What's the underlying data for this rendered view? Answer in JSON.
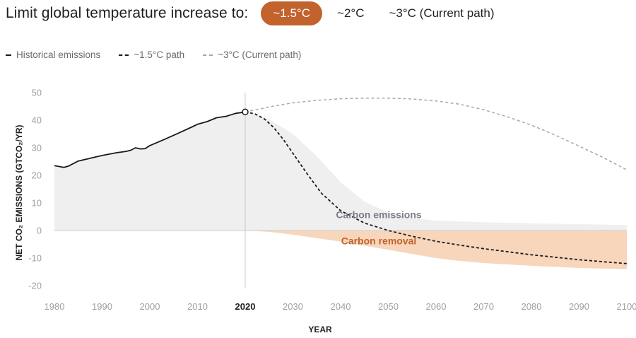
{
  "header": {
    "title": "Limit global temperature increase to:",
    "options": [
      {
        "label": "~1.5°C",
        "selected": true
      },
      {
        "label": "~2°C",
        "selected": false
      },
      {
        "label": "~3°C (Current path)",
        "selected": false
      }
    ]
  },
  "legend": {
    "items": [
      {
        "label": "Historical emissions"
      },
      {
        "label": "~1.5°C path"
      },
      {
        "label": "~3°C (Current path)"
      }
    ]
  },
  "colors": {
    "accent": "#c2622d",
    "historical": "#1a1a1a",
    "path_15": "#1a1a1a",
    "path_3": "#a8a8a8",
    "emissions_fill": "#efefef",
    "removal_fill": "#f8d6bb",
    "emissions_label": "#7a7e88",
    "removal_label": "#c2622d"
  },
  "chart_data": {
    "type": "line",
    "xlabel": "YEAR",
    "ylabel": "NET CO₂ EMISSIONS (GTCO₂/YR)",
    "xlim": [
      1980,
      2100
    ],
    "ylim": [
      -20,
      50
    ],
    "x_ticks": [
      1980,
      1990,
      2000,
      2010,
      2020,
      2030,
      2040,
      2050,
      2060,
      2070,
      2080,
      2090,
      2100
    ],
    "y_ticks": [
      -20,
      -10,
      0,
      10,
      20,
      30,
      40,
      50
    ],
    "highlight_year": 2020,
    "series": [
      {
        "name": "Historical emissions",
        "x": [
          1980,
          1982,
          1983,
          1985,
          1987,
          1990,
          1993,
          1995,
          1996,
          1997,
          1998,
          1999,
          2000,
          2003,
          2006,
          2009,
          2010,
          2012,
          2014,
          2016,
          2018,
          2020
        ],
        "y": [
          23.5,
          22.9,
          23.4,
          25.2,
          26.0,
          27.2,
          28.2,
          28.7,
          29.1,
          30.0,
          29.6,
          29.7,
          30.8,
          33.0,
          35.3,
          37.7,
          38.5,
          39.5,
          40.9,
          41.4,
          42.5,
          43.0
        ]
      },
      {
        "name": "~1.5°C path",
        "x": [
          2020,
          2022,
          2024,
          2026,
          2028,
          2030,
          2033,
          2036,
          2040,
          2045,
          2050,
          2055,
          2060,
          2065,
          2070,
          2075,
          2080,
          2085,
          2090,
          2095,
          2100
        ],
        "y": [
          43.0,
          42.3,
          40.5,
          37.3,
          33.0,
          28.0,
          20.5,
          13.5,
          7.2,
          2.7,
          0.0,
          -2.1,
          -3.9,
          -5.3,
          -6.6,
          -7.7,
          -8.8,
          -9.7,
          -10.6,
          -11.3,
          -12.0
        ]
      },
      {
        "name": "~3°C (Current path)",
        "x": [
          2020,
          2025,
          2030,
          2035,
          2040,
          2045,
          2050,
          2055,
          2060,
          2065,
          2070,
          2075,
          2080,
          2085,
          2090,
          2095,
          2100
        ],
        "y": [
          43.0,
          44.8,
          46.3,
          47.2,
          47.8,
          48.0,
          48.0,
          47.7,
          47.0,
          45.8,
          43.8,
          41.2,
          38.2,
          34.6,
          30.6,
          26.5,
          22.0
        ]
      }
    ],
    "areas": [
      {
        "name": "Carbon emissions",
        "x": [
          1980,
          1982,
          1983,
          1985,
          1987,
          1990,
          1993,
          1995,
          1996,
          1997,
          1998,
          1999,
          2000,
          2003,
          2006,
          2009,
          2010,
          2012,
          2014,
          2016,
          2018,
          2020,
          2025,
          2030,
          2035,
          2040,
          2045,
          2050,
          2055,
          2060,
          2070,
          2080,
          2090,
          2100
        ],
        "y": [
          23.5,
          22.9,
          23.4,
          25.2,
          26.0,
          27.2,
          28.2,
          28.7,
          29.1,
          30.0,
          29.6,
          29.7,
          30.8,
          33.0,
          35.3,
          37.7,
          38.5,
          39.5,
          40.9,
          41.4,
          42.5,
          43.0,
          40.3,
          35.0,
          27.0,
          17.5,
          10.5,
          6.5,
          4.5,
          3.6,
          3.0,
          2.6,
          2.3,
          2.0
        ]
      },
      {
        "name": "Carbon removal",
        "x": [
          2020,
          2025,
          2030,
          2040,
          2050,
          2060,
          2065,
          2070,
          2080,
          2090,
          2100
        ],
        "y": [
          0.0,
          -0.5,
          -1.5,
          -4.0,
          -7.0,
          -10.0,
          -11.0,
          -11.8,
          -12.8,
          -13.6,
          -14.0
        ]
      }
    ],
    "annotations": [
      {
        "text": "Carbon emissions",
        "x": 2048,
        "y": 4.5
      },
      {
        "text": "Carbon removal",
        "x": 2048,
        "y": -5.0
      }
    ],
    "grid": false
  }
}
